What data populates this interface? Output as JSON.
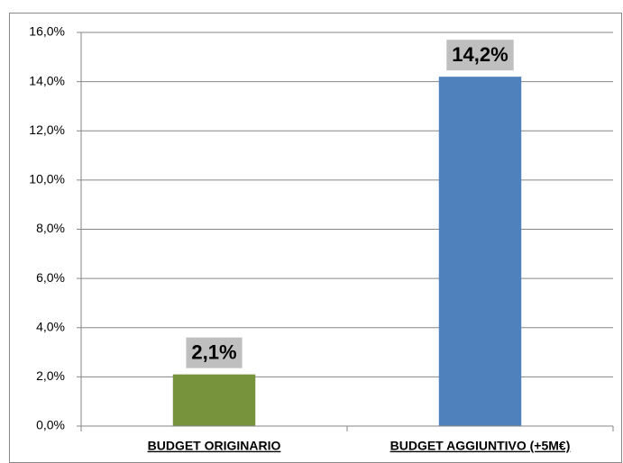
{
  "chart_data": {
    "type": "bar",
    "categories": [
      "BUDGET ORIGINARIO",
      "BUDGET AGGIUNTIVO (+5M€)"
    ],
    "values": [
      2.1,
      14.2
    ],
    "value_labels": [
      "2,1%",
      "14,2%"
    ],
    "colors": [
      "#77933c",
      "#4f81bd"
    ],
    "ylim": [
      0,
      16
    ],
    "yticks": [
      {
        "value": 0,
        "label": "0,0%"
      },
      {
        "value": 2,
        "label": "2,0%"
      },
      {
        "value": 4,
        "label": "4,0%"
      },
      {
        "value": 6,
        "label": "6,0%"
      },
      {
        "value": 8,
        "label": "8,0%"
      },
      {
        "value": 10,
        "label": "10,0%"
      },
      {
        "value": 12,
        "label": "12,0%"
      },
      {
        "value": 14,
        "label": "14,0%"
      },
      {
        "value": 16,
        "label": "16,0%"
      }
    ],
    "grid": true
  }
}
